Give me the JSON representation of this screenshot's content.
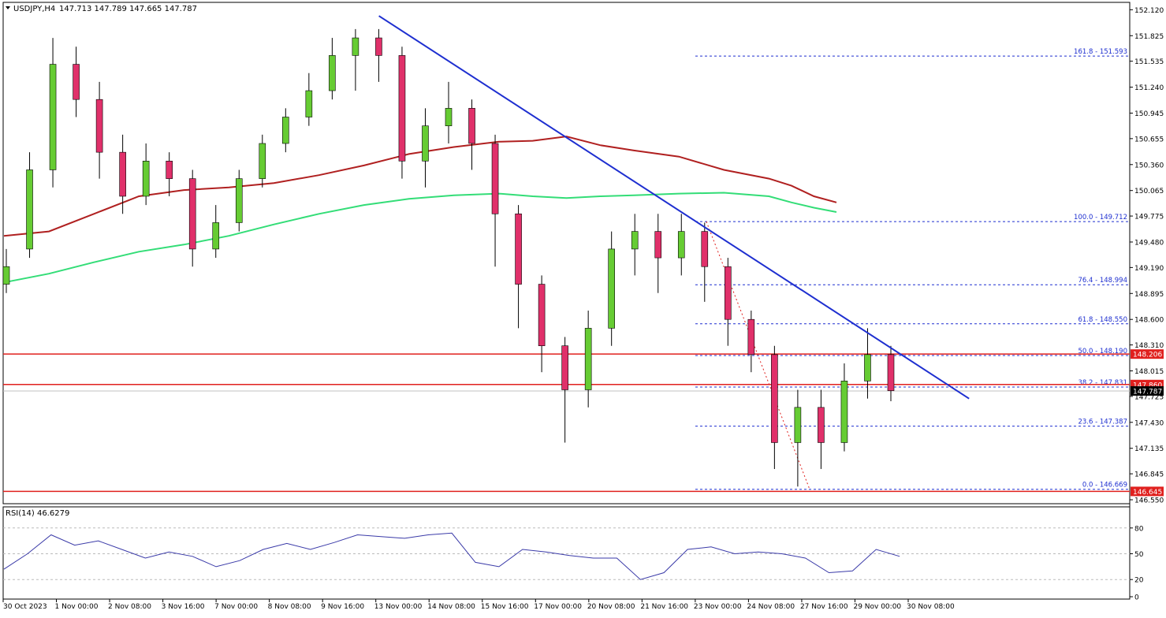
{
  "header": {
    "symbol": "USDJPY,H4",
    "ohlc": "147.713 147.789 147.665 147.787"
  },
  "rsi_header": "RSI(14) 46.6279",
  "chart_data": [
    {
      "type": "candlestick",
      "title": "USDJPY,H4",
      "ylim": [
        146.55,
        152.15
      ],
      "y_ticks": [
        "152.120",
        "151.825",
        "151.535",
        "151.240",
        "150.945",
        "150.655",
        "150.360",
        "150.065",
        "149.775",
        "149.480",
        "149.190",
        "148.895",
        "148.600",
        "148.310",
        "148.015",
        "147.725",
        "147.430",
        "147.135",
        "146.845",
        "146.550"
      ],
      "x_ticks": [
        "30 Oct 2023",
        "1 Nov 00:00",
        "2 Nov 08:00",
        "3 Nov 16:00",
        "7 Nov 00:00",
        "8 Nov 08:00",
        "9 Nov 16:00",
        "13 Nov 00:00",
        "14 Nov 08:00",
        "15 Nov 16:00",
        "17 Nov 00:00",
        "20 Nov 08:00",
        "21 Nov 16:00",
        "23 Nov 00:00",
        "24 Nov 08:00",
        "27 Nov 16:00",
        "29 Nov 00:00",
        "30 Nov 08:00"
      ],
      "grid": false,
      "current_price": {
        "label": "147.787",
        "value": 147.787
      },
      "levels": [
        {
          "label": "148.206",
          "value": 148.206,
          "color": "#e0201e"
        },
        {
          "label": "147.860",
          "value": 147.86,
          "color": "#e0201e"
        },
        {
          "label": "146.645",
          "value": 146.645,
          "color": "#e0201e"
        }
      ],
      "fibonacci": [
        {
          "label": "161.8 - 151.593",
          "value": 151.593
        },
        {
          "label": "100.0 - 149.712",
          "value": 149.712
        },
        {
          "label": "76.4 - 148.994",
          "value": 148.994
        },
        {
          "label": "61.8 - 148.550",
          "value": 148.55
        },
        {
          "label": "50.0 - 148.190",
          "value": 148.19
        },
        {
          "label": "38.2 - 147.831",
          "value": 147.831
        },
        {
          "label": "23.6 - 147.387",
          "value": 147.387
        },
        {
          "label": "0.0 - 146.669",
          "value": 146.669
        }
      ],
      "trendline": {
        "x": [
          0.3333,
          0.8579
        ],
        "y": [
          152.05,
          147.7
        ],
        "color": "#1e2fd0"
      },
      "ma_red": {
        "color": "#b02020",
        "points": [
          [
            0,
            149.55
          ],
          [
            0.04,
            149.6
          ],
          [
            0.08,
            149.8
          ],
          [
            0.12,
            150.0
          ],
          [
            0.16,
            150.07
          ],
          [
            0.2,
            150.1
          ],
          [
            0.24,
            150.15
          ],
          [
            0.28,
            150.24
          ],
          [
            0.32,
            150.35
          ],
          [
            0.36,
            150.48
          ],
          [
            0.4,
            150.56
          ],
          [
            0.44,
            150.62
          ],
          [
            0.47,
            150.63
          ],
          [
            0.5,
            150.68
          ],
          [
            0.53,
            150.58
          ],
          [
            0.56,
            150.52
          ],
          [
            0.6,
            150.45
          ],
          [
            0.64,
            150.3
          ],
          [
            0.68,
            150.2
          ],
          [
            0.7,
            150.12
          ],
          [
            0.72,
            150.0
          ],
          [
            0.74,
            149.93
          ]
        ]
      },
      "ma_green": {
        "color": "#33dd77",
        "points": [
          [
            0,
            149.02
          ],
          [
            0.04,
            149.12
          ],
          [
            0.08,
            149.25
          ],
          [
            0.12,
            149.37
          ],
          [
            0.16,
            149.45
          ],
          [
            0.2,
            149.55
          ],
          [
            0.24,
            149.68
          ],
          [
            0.28,
            149.8
          ],
          [
            0.32,
            149.9
          ],
          [
            0.36,
            149.97
          ],
          [
            0.4,
            150.01
          ],
          [
            0.44,
            150.03
          ],
          [
            0.47,
            150.0
          ],
          [
            0.5,
            149.98
          ],
          [
            0.53,
            150.0
          ],
          [
            0.56,
            150.01
          ],
          [
            0.6,
            150.03
          ],
          [
            0.64,
            150.04
          ],
          [
            0.68,
            150.0
          ],
          [
            0.7,
            149.93
          ],
          [
            0.72,
            149.87
          ],
          [
            0.74,
            149.82
          ]
        ]
      },
      "candles": [
        [
          149.0,
          149.2,
          148.9,
          149.4
        ],
        [
          149.4,
          150.3,
          149.3,
          150.5
        ],
        [
          150.3,
          151.5,
          150.1,
          151.8
        ],
        [
          151.5,
          151.1,
          150.9,
          151.7
        ],
        [
          151.1,
          150.5,
          150.2,
          151.3
        ],
        [
          150.5,
          150.0,
          149.8,
          150.7
        ],
        [
          150.0,
          150.4,
          149.9,
          150.6
        ],
        [
          150.4,
          150.2,
          150.0,
          150.5
        ],
        [
          150.2,
          149.4,
          149.2,
          150.3
        ],
        [
          149.4,
          149.7,
          149.3,
          149.9
        ],
        [
          149.7,
          150.2,
          149.6,
          150.3
        ],
        [
          150.2,
          150.6,
          150.1,
          150.7
        ],
        [
          150.6,
          150.9,
          150.5,
          151.0
        ],
        [
          150.9,
          151.2,
          150.8,
          151.4
        ],
        [
          151.2,
          151.6,
          151.1,
          151.8
        ],
        [
          151.6,
          151.8,
          151.2,
          151.9
        ],
        [
          151.8,
          151.6,
          151.3,
          151.9
        ],
        [
          151.6,
          150.4,
          150.2,
          151.7
        ],
        [
          150.4,
          150.8,
          150.1,
          151.0
        ],
        [
          150.8,
          151.0,
          150.6,
          151.3
        ],
        [
          151.0,
          150.6,
          150.3,
          151.1
        ],
        [
          150.6,
          149.8,
          149.2,
          150.7
        ],
        [
          149.8,
          149.0,
          148.5,
          149.9
        ],
        [
          149.0,
          148.3,
          148.0,
          149.1
        ],
        [
          148.3,
          147.8,
          147.2,
          148.4
        ],
        [
          147.8,
          148.5,
          147.6,
          148.7
        ],
        [
          148.5,
          149.4,
          148.3,
          149.6
        ],
        [
          149.4,
          149.6,
          149.1,
          149.8
        ],
        [
          149.6,
          149.3,
          148.9,
          149.8
        ],
        [
          149.3,
          149.6,
          149.1,
          149.8
        ],
        [
          149.6,
          149.2,
          148.8,
          149.7
        ],
        [
          149.2,
          148.6,
          148.3,
          149.3
        ],
        [
          148.6,
          148.2,
          148.0,
          148.7
        ],
        [
          148.2,
          147.2,
          146.9,
          148.3
        ],
        [
          147.2,
          147.6,
          146.7,
          147.8
        ],
        [
          147.6,
          147.2,
          146.9,
          147.8
        ],
        [
          147.2,
          147.9,
          147.1,
          148.1
        ],
        [
          147.9,
          148.2,
          147.7,
          148.5
        ],
        [
          148.2,
          147.79,
          147.67,
          148.3
        ]
      ]
    },
    {
      "type": "line",
      "title": "RSI(14) 46.6279",
      "ylim": [
        0,
        100
      ],
      "y_ticks": [
        "80",
        "50",
        "20",
        "0"
      ],
      "levels": [
        80,
        50,
        20
      ],
      "x": [
        0,
        0.02,
        0.04,
        0.06,
        0.08,
        0.1,
        0.12,
        0.14,
        0.16,
        0.18,
        0.2,
        0.22,
        0.24,
        0.26,
        0.28,
        0.3,
        0.32,
        0.34,
        0.36,
        0.38,
        0.4,
        0.42,
        0.44,
        0.46,
        0.48,
        0.5,
        0.52,
        0.54,
        0.56,
        0.58,
        0.6,
        0.62,
        0.64,
        0.66,
        0.68,
        0.7,
        0.72,
        0.74,
        0.76
      ],
      "values": [
        32,
        50,
        72,
        60,
        65,
        55,
        45,
        52,
        47,
        35,
        42,
        55,
        62,
        55,
        63,
        72,
        70,
        68,
        72,
        74,
        40,
        35,
        55,
        52,
        48,
        45,
        45,
        20,
        28,
        55,
        58,
        50,
        52,
        50,
        45,
        28,
        30,
        55,
        47
      ]
    }
  ]
}
